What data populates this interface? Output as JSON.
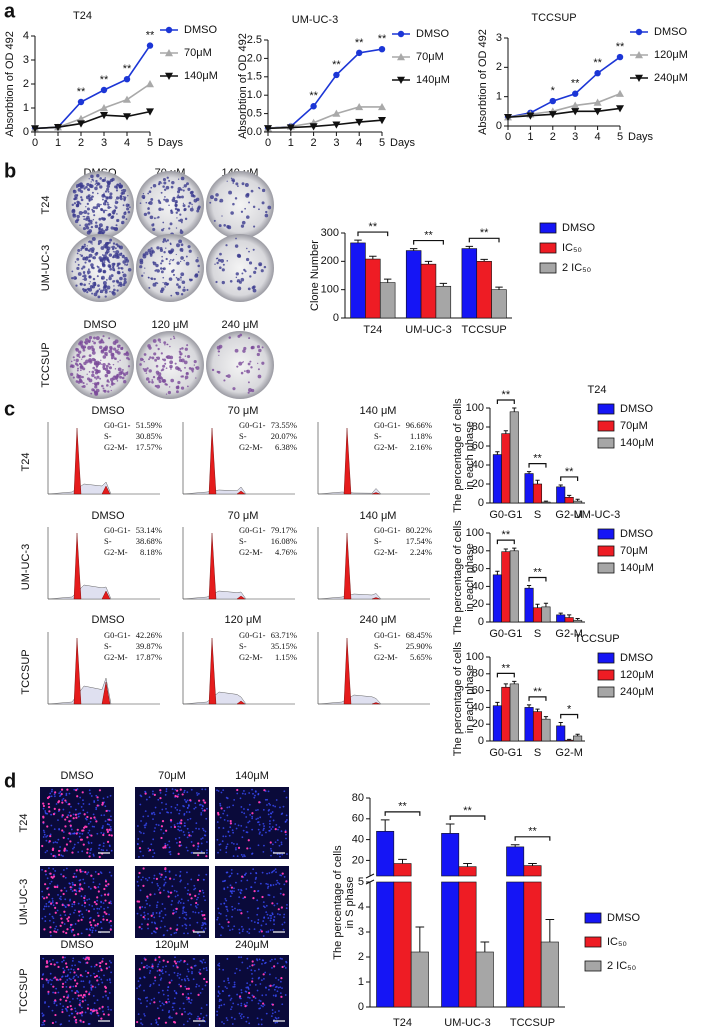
{
  "panel_labels": [
    "a",
    "b",
    "c",
    "d"
  ],
  "chart_data": [
    {
      "type": "line",
      "title": "T24",
      "ylabel": "Absorbtion of OD 492",
      "xlabel": "Days",
      "x": [
        0,
        1,
        2,
        3,
        4,
        5
      ],
      "xlim": [
        0,
        5
      ],
      "xticks": [
        0,
        1,
        2,
        3,
        4,
        5
      ],
      "ylim": [
        0,
        4
      ],
      "yticks": [
        0,
        1,
        2,
        3,
        4
      ],
      "series": [
        {
          "name": "DMSO",
          "color": "#1c36d6",
          "marker": "circle",
          "values": [
            0.15,
            0.2,
            1.25,
            1.75,
            2.2,
            3.6
          ]
        },
        {
          "name": "70μM",
          "color": "#a9a9a9",
          "marker": "triangle-up",
          "values": [
            0.15,
            0.2,
            0.55,
            1.0,
            1.35,
            2.0
          ]
        },
        {
          "name": "140μM",
          "color": "#111111",
          "marker": "triangle-down",
          "values": [
            0.15,
            0.2,
            0.35,
            0.7,
            0.65,
            0.85
          ]
        }
      ],
      "sig": [
        "**",
        "**",
        "**",
        "**"
      ],
      "sig_x": [
        2,
        3,
        4,
        5
      ]
    },
    {
      "type": "line",
      "title": "UM-UC-3",
      "ylabel": "Absorbtion of OD 492",
      "xlabel": "Days",
      "x": [
        0,
        1,
        2,
        3,
        4,
        5
      ],
      "xlim": [
        0,
        5
      ],
      "xticks": [
        0,
        1,
        2,
        3,
        4,
        5
      ],
      "ylim": [
        0,
        2.5
      ],
      "yticks": [
        {
          "value": 0,
          "label": "0.0"
        },
        0.5,
        {
          "value": 1,
          "label": "1.0"
        },
        1.5,
        {
          "value": 2,
          "label": "2.0"
        },
        2.5
      ],
      "series": [
        {
          "name": "DMSO",
          "color": "#1c36d6",
          "marker": "circle",
          "values": [
            0.1,
            0.15,
            0.7,
            1.55,
            2.15,
            2.25
          ]
        },
        {
          "name": "70μM",
          "color": "#a9a9a9",
          "marker": "triangle-up",
          "values": [
            0.1,
            0.15,
            0.25,
            0.5,
            0.68,
            0.68
          ]
        },
        {
          "name": "140μM",
          "color": "#111111",
          "marker": "triangle-down",
          "values": [
            0.1,
            0.12,
            0.15,
            0.2,
            0.27,
            0.32
          ]
        }
      ],
      "sig": [
        "**",
        "**",
        "**",
        "**"
      ],
      "sig_x": [
        2,
        3,
        4,
        5
      ]
    },
    {
      "type": "line",
      "title": "TCCSUP",
      "ylabel": "Absorbtion of OD 492",
      "xlabel": "Days",
      "x": [
        0,
        1,
        2,
        3,
        4,
        5
      ],
      "xlim": [
        0,
        5
      ],
      "xticks": [
        0,
        1,
        2,
        3,
        4,
        5
      ],
      "ylim": [
        0,
        3
      ],
      "yticks": [
        0,
        1,
        2,
        3
      ],
      "series": [
        {
          "name": "DMSO",
          "color": "#1c36d6",
          "marker": "circle",
          "values": [
            0.3,
            0.45,
            0.85,
            1.1,
            1.8,
            2.35
          ]
        },
        {
          "name": "120μM",
          "color": "#a9a9a9",
          "marker": "triangle-up",
          "values": [
            0.3,
            0.4,
            0.5,
            0.7,
            0.8,
            1.1
          ]
        },
        {
          "name": "240μM",
          "color": "#111111",
          "marker": "triangle-down",
          "values": [
            0.3,
            0.35,
            0.4,
            0.5,
            0.5,
            0.6
          ]
        }
      ],
      "sig": [
        "*",
        "**",
        "**",
        "**"
      ],
      "sig_x": [
        2,
        3,
        4,
        5
      ]
    },
    {
      "type": "bar",
      "ylabel": "Clone Number",
      "categories": [
        "T24",
        "UM-UC-3",
        "TCCSUP"
      ],
      "ylim": [
        0,
        300
      ],
      "yticks": [
        0,
        100,
        200,
        300
      ],
      "series": [
        {
          "name": "DMSO",
          "color": "#1515f5",
          "values": [
            265,
            238,
            245
          ],
          "errors": [
            10,
            7,
            8
          ]
        },
        {
          "name": "IC₅₀",
          "color": "#ee1c24",
          "values": [
            208,
            190,
            200
          ],
          "errors": [
            10,
            10,
            7
          ]
        },
        {
          "name": "2 IC₅₀",
          "color": "#a6a6a6",
          "values": [
            125,
            112,
            100
          ],
          "errors": [
            12,
            10,
            9
          ]
        }
      ],
      "significance": [
        "**",
        "**",
        "**"
      ]
    },
    {
      "type": "bar",
      "title": "T24",
      "ylabel": [
        "The percentage of cells",
        "in each phase"
      ],
      "categories": [
        "G0-G1",
        "S",
        "G2-M"
      ],
      "ylim": [
        0,
        100
      ],
      "yticks": [
        0,
        20,
        40,
        60,
        80,
        100
      ],
      "series": [
        {
          "name": "DMSO",
          "color": "#1515f5",
          "values": [
            51,
            31,
            17
          ],
          "errors": [
            3,
            2,
            2
          ]
        },
        {
          "name": "70μM",
          "color": "#ee1c24",
          "values": [
            73,
            20,
            6
          ],
          "errors": [
            3,
            4,
            2
          ]
        },
        {
          "name": "140μM",
          "color": "#a6a6a6",
          "values": [
            96,
            1,
            2
          ],
          "errors": [
            4,
            1,
            2
          ]
        }
      ],
      "significance": [
        "**",
        "**",
        "**"
      ]
    },
    {
      "type": "bar",
      "title": "UM-UC-3",
      "ylabel": [
        "The percentage of cells",
        "in each phase"
      ],
      "categories": [
        "G0-G1",
        "S",
        "G2-M"
      ],
      "ylim": [
        0,
        100
      ],
      "yticks": [
        0,
        20,
        40,
        60,
        80,
        100
      ],
      "series": [
        {
          "name": "DMSO",
          "color": "#1515f5",
          "values": [
            53,
            38,
            8
          ],
          "errors": [
            4,
            3,
            2
          ]
        },
        {
          "name": "70μM",
          "color": "#ee1c24",
          "values": [
            79,
            16,
            5
          ],
          "errors": [
            3,
            4,
            3
          ]
        },
        {
          "name": "140μM",
          "color": "#a6a6a6",
          "values": [
            80,
            17,
            2
          ],
          "errors": [
            3,
            4,
            2
          ]
        }
      ],
      "significance": [
        "**",
        "**",
        null
      ]
    },
    {
      "type": "bar",
      "title": "TCCSUP",
      "ylabel": [
        "The percentage of cells",
        "in each phase"
      ],
      "categories": [
        "G0-G1",
        "S",
        "G2-M"
      ],
      "ylim": [
        0,
        100
      ],
      "yticks": [
        0,
        20,
        40,
        60,
        80,
        100
      ],
      "series": [
        {
          "name": "DMSO",
          "color": "#1515f5",
          "values": [
            42,
            40,
            18
          ],
          "errors": [
            4,
            3,
            4
          ]
        },
        {
          "name": "120μM",
          "color": "#ee1c24",
          "values": [
            64,
            35,
            1
          ],
          "errors": [
            4,
            3,
            1
          ]
        },
        {
          "name": "240μM",
          "color": "#a6a6a6",
          "values": [
            68,
            26,
            6
          ],
          "errors": [
            3,
            3,
            2
          ]
        }
      ],
      "significance": [
        "**",
        "**",
        "*"
      ]
    },
    {
      "type": "broken-bar",
      "ylabel": [
        "The percentage of cells",
        "in S phase"
      ],
      "categories": [
        "T24",
        "UM-UC-3",
        "TCCSUP"
      ],
      "ylim": [
        0,
        5
      ],
      "yticks": [
        0,
        1,
        2,
        3,
        4,
        5
      ],
      "ylim_upper": [
        5,
        80
      ],
      "yticks_upper": [
        20,
        40,
        60,
        80
      ],
      "series": [
        {
          "name": "DMSO",
          "color": "#1515f5",
          "values": [
            48,
            46,
            33
          ],
          "errors": [
            11,
            9,
            2
          ]
        },
        {
          "name": "IC₅₀",
          "color": "#ee1c24",
          "values": [
            17,
            14,
            15
          ],
          "errors": [
            4,
            3,
            2
          ]
        },
        {
          "name": "2 IC₅₀",
          "color": "#a6a6a6",
          "values": [
            2.2,
            2.2,
            2.6
          ],
          "errors": [
            1,
            0.4,
            0.9
          ]
        }
      ],
      "significance": [
        "**",
        "**",
        "**"
      ]
    }
  ],
  "colony_assay": {
    "rows": [
      "T24",
      "UM-UC-3",
      "TCCSUP"
    ],
    "column_headers": [
      [
        "DMSO",
        "70 μM",
        "140 μM"
      ],
      [
        "DMSO",
        "120 μM",
        "240 μM"
      ]
    ]
  },
  "cell_cycle": {
    "rows": [
      "T24",
      "UM-UC-3",
      "TCCSUP"
    ],
    "column_headers": [
      [
        "DMSO",
        "70 μM",
        "140 μM"
      ],
      [
        "DMSO",
        "70 μM",
        "140 μM"
      ],
      [
        "DMSO",
        "120 μM",
        "240 μM"
      ]
    ],
    "stats": [
      [
        [
          [
            "G0-G1-",
            "51.59%"
          ],
          [
            "S-",
            "30.85%"
          ],
          [
            "G2-M-",
            "17.57%"
          ]
        ],
        [
          [
            "G0-G1-",
            "73.55%"
          ],
          [
            "S-",
            "20.07%"
          ],
          [
            "G2-M-",
            "6.38%"
          ]
        ],
        [
          [
            "G0-G1-",
            "96.66%"
          ],
          [
            "S-",
            "1.18%"
          ],
          [
            "G2-M-",
            "2.16%"
          ]
        ]
      ],
      [
        [
          [
            "G0-G1-",
            "53.14%"
          ],
          [
            "S-",
            "38.68%"
          ],
          [
            "G2-M-",
            "8.18%"
          ]
        ],
        [
          [
            "G0-G1-",
            "79.17%"
          ],
          [
            "S-",
            "16.08%"
          ],
          [
            "G2-M-",
            "4.76%"
          ]
        ],
        [
          [
            "G0-G1-",
            "80.22%"
          ],
          [
            "S-",
            "17.54%"
          ],
          [
            "G2-M-",
            "2.24%"
          ]
        ]
      ],
      [
        [
          [
            "G0-G1-",
            "42.26%"
          ],
          [
            "S-",
            "39.87%"
          ],
          [
            "G2-M-",
            "17.87%"
          ]
        ],
        [
          [
            "G0-G1-",
            "63.71%"
          ],
          [
            "S-",
            "35.15%"
          ],
          [
            "G2-M-",
            "1.15%"
          ]
        ],
        [
          [
            "G0-G1-",
            "68.45%"
          ],
          [
            "S-",
            "25.90%"
          ],
          [
            "G2-M-",
            "5.65%"
          ]
        ]
      ]
    ]
  },
  "edu_assay": {
    "rows": [
      "T24",
      "UM-UC-3",
      "TCCSUP"
    ],
    "column_headers": [
      [
        "DMSO",
        "70μM",
        "140μM"
      ],
      [
        "DMSO",
        "120μM",
        "240μM"
      ]
    ]
  }
}
